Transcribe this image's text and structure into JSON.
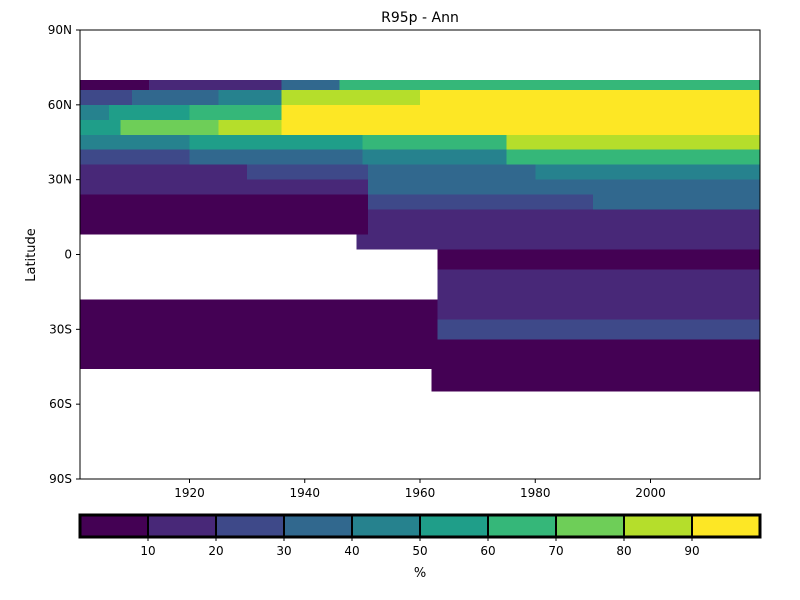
{
  "chart_data": {
    "type": "heatmap",
    "title": "R95p - Ann",
    "ylabel": "Latitude",
    "xlabel": "",
    "xlim": [
      1901,
      2019
    ],
    "ylim": [
      -90,
      90
    ],
    "x_ticks": [
      {
        "value": 1920,
        "label": "1920"
      },
      {
        "value": 1940,
        "label": "1940"
      },
      {
        "value": 1960,
        "label": "1960"
      },
      {
        "value": 1980,
        "label": "1980"
      },
      {
        "value": 2000,
        "label": "2000"
      }
    ],
    "y_ticks": [
      {
        "value": 90,
        "label": "90N"
      },
      {
        "value": 60,
        "label": "60N"
      },
      {
        "value": 30,
        "label": "30N"
      },
      {
        "value": 0,
        "label": "0"
      },
      {
        "value": -30,
        "label": "30S"
      },
      {
        "value": -60,
        "label": "60S"
      },
      {
        "value": -90,
        "label": "90S"
      }
    ],
    "colorbar": {
      "label": "%",
      "range": [
        0,
        100
      ],
      "tick_values": [
        10,
        20,
        30,
        40,
        50,
        60,
        70,
        80,
        90
      ],
      "tick_labels": [
        "10",
        "20",
        "30",
        "40",
        "50",
        "60",
        "70",
        "80",
        "90"
      ],
      "colors": [
        "#440154",
        "#482878",
        "#3e4989",
        "#31688e",
        "#26828e",
        "#1f9e89",
        "#35b779",
        "#6ece58",
        "#b5de2b",
        "#fde725"
      ]
    },
    "regions": [
      {
        "x0": 1901,
        "x1": 1913,
        "y0": 66,
        "y1": 70,
        "value": 5
      },
      {
        "x0": 1913,
        "x1": 1936,
        "y0": 66,
        "y1": 70,
        "value": 15
      },
      {
        "x0": 1936,
        "x1": 1946,
        "y0": 66,
        "y1": 70,
        "value": 35
      },
      {
        "x0": 1946,
        "x1": 2019,
        "y0": 66,
        "y1": 70,
        "value": 65
      },
      {
        "x0": 1901,
        "x1": 1910,
        "y0": 60,
        "y1": 66,
        "value": 25
      },
      {
        "x0": 1910,
        "x1": 1925,
        "y0": 60,
        "y1": 66,
        "value": 35
      },
      {
        "x0": 1925,
        "x1": 1936,
        "y0": 60,
        "y1": 66,
        "value": 45
      },
      {
        "x0": 1936,
        "x1": 1960,
        "y0": 60,
        "y1": 66,
        "value": 85
      },
      {
        "x0": 1960,
        "x1": 2019,
        "y0": 60,
        "y1": 66,
        "value": 95
      },
      {
        "x0": 1901,
        "x1": 1906,
        "y0": 54,
        "y1": 60,
        "value": 45
      },
      {
        "x0": 1906,
        "x1": 1920,
        "y0": 54,
        "y1": 60,
        "value": 55
      },
      {
        "x0": 1920,
        "x1": 1936,
        "y0": 54,
        "y1": 60,
        "value": 65
      },
      {
        "x0": 1936,
        "x1": 2019,
        "y0": 54,
        "y1": 60,
        "value": 95
      },
      {
        "x0": 1901,
        "x1": 1908,
        "y0": 48,
        "y1": 54,
        "value": 55
      },
      {
        "x0": 1908,
        "x1": 1925,
        "y0": 48,
        "y1": 54,
        "value": 75
      },
      {
        "x0": 1925,
        "x1": 1936,
        "y0": 48,
        "y1": 54,
        "value": 85
      },
      {
        "x0": 1936,
        "x1": 2019,
        "y0": 48,
        "y1": 54,
        "value": 95
      },
      {
        "x0": 1901,
        "x1": 1920,
        "y0": 42,
        "y1": 48,
        "value": 45
      },
      {
        "x0": 1920,
        "x1": 1950,
        "y0": 42,
        "y1": 48,
        "value": 55
      },
      {
        "x0": 1950,
        "x1": 1975,
        "y0": 42,
        "y1": 48,
        "value": 65
      },
      {
        "x0": 1975,
        "x1": 2019,
        "y0": 42,
        "y1": 48,
        "value": 85
      },
      {
        "x0": 1901,
        "x1": 1920,
        "y0": 36,
        "y1": 42,
        "value": 25
      },
      {
        "x0": 1920,
        "x1": 1950,
        "y0": 36,
        "y1": 42,
        "value": 35
      },
      {
        "x0": 1950,
        "x1": 1975,
        "y0": 36,
        "y1": 42,
        "value": 45
      },
      {
        "x0": 1975,
        "x1": 2019,
        "y0": 36,
        "y1": 42,
        "value": 65
      },
      {
        "x0": 1901,
        "x1": 1930,
        "y0": 30,
        "y1": 36,
        "value": 15
      },
      {
        "x0": 1930,
        "x1": 1951,
        "y0": 30,
        "y1": 36,
        "value": 25
      },
      {
        "x0": 1951,
        "x1": 1980,
        "y0": 30,
        "y1": 36,
        "value": 35
      },
      {
        "x0": 1980,
        "x1": 2019,
        "y0": 30,
        "y1": 36,
        "value": 45
      },
      {
        "x0": 1901,
        "x1": 1951,
        "y0": 24,
        "y1": 30,
        "value": 15
      },
      {
        "x0": 1951,
        "x1": 2019,
        "y0": 24,
        "y1": 30,
        "value": 35
      },
      {
        "x0": 1901,
        "x1": 1951,
        "y0": 18,
        "y1": 24,
        "value": 5
      },
      {
        "x0": 1951,
        "x1": 1990,
        "y0": 18,
        "y1": 24,
        "value": 25
      },
      {
        "x0": 1990,
        "x1": 2019,
        "y0": 18,
        "y1": 24,
        "value": 35
      },
      {
        "x0": 1901,
        "x1": 1951,
        "y0": 8,
        "y1": 18,
        "value": 5
      },
      {
        "x0": 1951,
        "x1": 2019,
        "y0": 8,
        "y1": 18,
        "value": 15
      },
      {
        "x0": 1949,
        "x1": 2019,
        "y0": 2,
        "y1": 8,
        "value": 15
      },
      {
        "x0": 1963,
        "x1": 2019,
        "y0": -6,
        "y1": 2,
        "value": 5
      },
      {
        "x0": 1963,
        "x1": 2019,
        "y0": -18,
        "y1": -6,
        "value": 15
      },
      {
        "x0": 1901,
        "x1": 1963,
        "y0": -26,
        "y1": -18,
        "value": 5
      },
      {
        "x0": 1963,
        "x1": 2019,
        "y0": -26,
        "y1": -18,
        "value": 15
      },
      {
        "x0": 1901,
        "x1": 1963,
        "y0": -46,
        "y1": -26,
        "value": 5
      },
      {
        "x0": 1963,
        "x1": 2019,
        "y0": -34,
        "y1": -26,
        "value": 25
      },
      {
        "x0": 1963,
        "x1": 2019,
        "y0": -46,
        "y1": -34,
        "value": 5
      },
      {
        "x0": 1962,
        "x1": 2019,
        "y0": -55,
        "y1": -46,
        "value": 5
      }
    ]
  }
}
